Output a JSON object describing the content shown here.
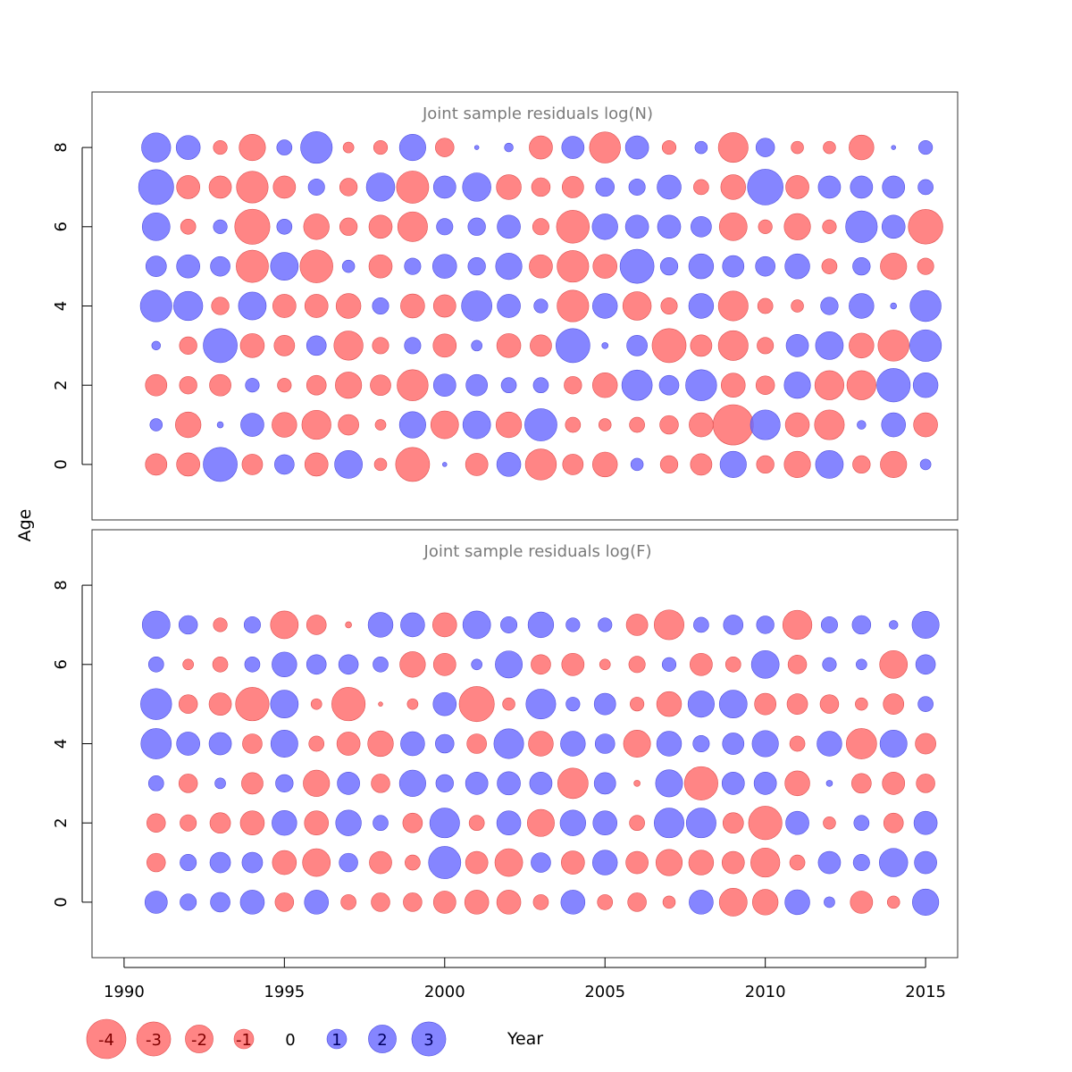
{
  "chart_data": {
    "type": "scatter",
    "encoding": "bubble",
    "xlabel": "Year",
    "ylabel": "Age",
    "x_ticks": [
      1990,
      1995,
      2000,
      2005,
      2010,
      2015
    ],
    "y_ticks": [
      0,
      2,
      4,
      6,
      8
    ],
    "xlim": [
      1989,
      2016
    ],
    "ylim": [
      -1.4,
      9.4
    ],
    "colors": {
      "negative": "#ff6a6a",
      "positive": "#6a6aff"
    },
    "years": [
      1991,
      1992,
      1993,
      1994,
      1995,
      1996,
      1997,
      1998,
      1999,
      2000,
      2001,
      2002,
      2003,
      2004,
      2005,
      2006,
      2007,
      2008,
      2009,
      2010,
      2011,
      2012,
      2013,
      2014,
      2015
    ],
    "panels": [
      {
        "title": "Joint sample residuals log(N)",
        "ages": [
          0,
          1,
          2,
          3,
          4,
          5,
          6,
          7,
          8
        ],
        "residuals": [
          [
            -1.2,
            -1.4,
            3.0,
            -1.1,
            1.0,
            -1.4,
            2.0,
            -0.4,
            -3.0,
            0.05,
            -1.3,
            1.5,
            -2.5,
            -1.1,
            -1.6,
            0.4,
            -0.8,
            -1.2,
            1.8,
            -0.8,
            -1.8,
            2.0,
            -0.8,
            -1.8,
            0.3
          ],
          [
            0.4,
            -1.7,
            0.1,
            1.4,
            -1.6,
            -2.2,
            -1.1,
            -0.3,
            1.8,
            -2.0,
            2.0,
            -1.7,
            2.7,
            -0.6,
            -0.4,
            -0.6,
            -0.9,
            -1.5,
            -4.2,
            2.3,
            -1.5,
            -2.3,
            0.2,
            1.5,
            -1.5
          ],
          [
            -1.2,
            -0.8,
            -1.2,
            0.5,
            -0.5,
            -1.0,
            -1.8,
            -1.1,
            -2.5,
            1.3,
            1.2,
            0.6,
            0.6,
            -0.8,
            -1.6,
            2.4,
            1.0,
            2.5,
            -1.5,
            -0.9,
            1.8,
            -2.2,
            -2.2,
            2.9,
            1.6
          ],
          [
            0.2,
            -0.8,
            3.0,
            -1.5,
            -1.1,
            1.0,
            -2.2,
            -0.7,
            0.7,
            -1.4,
            0.3,
            -1.5,
            -1.2,
            3.0,
            0.1,
            1.1,
            -3.0,
            -1.2,
            -2.3,
            -0.7,
            1.3,
            2.0,
            -1.6,
            -2.5,
            2.6
          ],
          [
            2.6,
            2.2,
            -0.8,
            2.0,
            -1.4,
            -1.4,
            -1.6,
            0.7,
            -1.5,
            -1.3,
            2.4,
            1.4,
            0.5,
            -2.6,
            1.6,
            -2.1,
            -0.7,
            1.6,
            -2.3,
            -0.6,
            -0.4,
            0.8,
            1.6,
            0.1,
            2.5
          ],
          [
            1.1,
            1.4,
            1.0,
            -2.7,
            2.0,
            -2.8,
            0.4,
            -1.4,
            0.7,
            1.5,
            0.8,
            1.8,
            -1.4,
            -2.6,
            -1.5,
            3.0,
            0.8,
            1.6,
            1.2,
            1.0,
            1.6,
            -0.6,
            0.8,
            -1.8,
            -0.7
          ],
          [
            2.0,
            -0.6,
            0.5,
            -3.2,
            0.6,
            -1.7,
            -0.8,
            -1.4,
            -2.3,
            0.7,
            0.8,
            1.4,
            -0.7,
            -2.8,
            1.7,
            1.4,
            1.4,
            1.1,
            -2.0,
            -0.5,
            -1.8,
            -0.5,
            2.6,
            1.4,
            -3.1
          ],
          [
            3.2,
            -1.4,
            -1.3,
            -2.6,
            -1.3,
            0.7,
            -0.8,
            2.1,
            -2.7,
            1.3,
            2.1,
            -1.6,
            -0.9,
            -1.2,
            0.9,
            0.7,
            1.5,
            -0.6,
            -1.6,
            3.3,
            -1.4,
            1.3,
            1.3,
            1.3,
            0.6
          ],
          [
            2.2,
            1.5,
            -0.5,
            -1.8,
            0.6,
            2.6,
            -0.3,
            -0.5,
            1.8,
            -0.9,
            0.05,
            0.2,
            -1.4,
            1.3,
            -2.5,
            1.4,
            -0.5,
            0.4,
            -2.3,
            0.9,
            -0.4,
            -0.4,
            -1.6,
            0.05,
            0.5
          ]
        ]
      },
      {
        "title": "Joint sample residuals log(F)",
        "ages": [
          0,
          1,
          2,
          3,
          4,
          5,
          6,
          7
        ],
        "residuals": [
          [
            1.3,
            0.7,
            1.0,
            1.5,
            -0.9,
            1.5,
            -0.6,
            -0.9,
            -0.9,
            -1.3,
            -1.5,
            -1.5,
            -0.6,
            1.5,
            -0.6,
            -0.9,
            -0.4,
            1.5,
            -2.0,
            -1.7,
            1.6,
            0.3,
            -1.3,
            -0.4,
            1.8
          ],
          [
            -0.9,
            0.7,
            1.1,
            1.1,
            -1.5,
            -2.0,
            0.9,
            -1.3,
            -0.6,
            2.7,
            -1.3,
            -2.0,
            1.0,
            -1.4,
            1.6,
            -1.3,
            -1.8,
            -1.6,
            -1.3,
            -2.2,
            -0.6,
            1.3,
            0.7,
            2.1,
            1.3
          ],
          [
            -0.9,
            -0.7,
            -1.1,
            -1.5,
            1.6,
            -1.5,
            1.7,
            0.6,
            -1.0,
            2.3,
            -0.6,
            1.5,
            -1.9,
            1.7,
            1.5,
            -0.6,
            2.3,
            2.3,
            -1.1,
            -2.9,
            1.4,
            -0.4,
            0.6,
            -1.0,
            1.4
          ],
          [
            0.6,
            -0.9,
            0.3,
            -1.2,
            0.8,
            -1.8,
            1.3,
            -0.9,
            1.8,
            0.8,
            1.3,
            1.4,
            1.3,
            -2.4,
            1.2,
            -0.1,
            1.9,
            -2.9,
            1.3,
            1.3,
            -1.6,
            0.1,
            -1.0,
            -1.3,
            -0.9
          ],
          [
            2.4,
            1.4,
            1.3,
            -1.0,
            1.9,
            -0.6,
            -1.4,
            -1.7,
            1.5,
            0.9,
            -1.0,
            2.3,
            -1.6,
            1.6,
            1.0,
            -1.9,
            1.6,
            0.7,
            1.2,
            1.8,
            -0.6,
            1.6,
            -2.4,
            1.9,
            -1.1
          ],
          [
            2.5,
            -0.9,
            -1.3,
            -2.9,
            2.0,
            -0.3,
            -2.9,
            -0.05,
            -0.3,
            1.4,
            -3.2,
            -0.4,
            2.3,
            0.5,
            1.2,
            -0.5,
            -1.6,
            1.8,
            2.0,
            -1.2,
            -1.1,
            -0.9,
            -0.4,
            -1.1,
            0.6
          ],
          [
            0.6,
            -0.3,
            -0.6,
            0.6,
            1.6,
            1.0,
            1.0,
            0.6,
            -1.7,
            -1.3,
            0.3,
            1.9,
            -1.0,
            -1.3,
            -0.3,
            -0.7,
            0.5,
            -1.3,
            -0.6,
            2.0,
            -0.9,
            0.5,
            0.3,
            -2.0,
            1.0
          ],
          [
            2.0,
            0.9,
            -0.5,
            0.7,
            -2.0,
            -1.0,
            -0.1,
            1.6,
            1.5,
            -1.5,
            2.0,
            0.7,
            1.7,
            0.5,
            0.5,
            -1.2,
            -2.3,
            0.6,
            1.0,
            0.8,
            -2.2,
            0.7,
            0.9,
            0.2,
            1.9
          ]
        ]
      }
    ],
    "legend": {
      "placement": "bottom-left",
      "values": [
        -4,
        -3,
        -2,
        -1,
        0,
        1,
        2,
        3
      ],
      "labels": [
        "-4",
        "-3",
        "-2",
        "-1",
        "0",
        "1",
        "2",
        "3"
      ]
    }
  }
}
